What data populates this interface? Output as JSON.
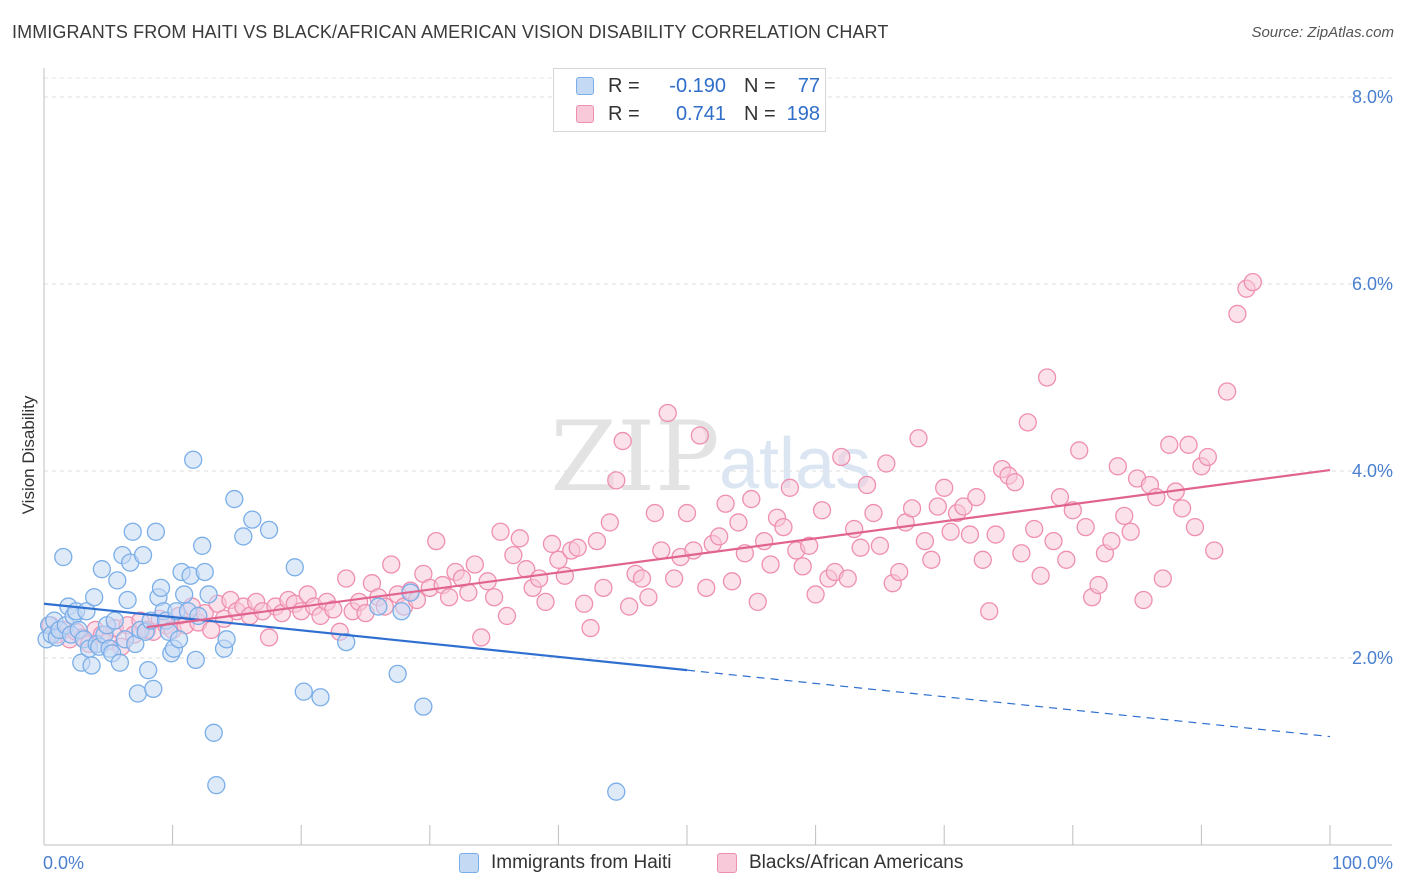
{
  "title": "IMMIGRANTS FROM HAITI VS BLACK/AFRICAN AMERICAN VISION DISABILITY CORRELATION CHART",
  "source": "Source: ZipAtlas.com",
  "watermark": {
    "zip": "ZIP",
    "atlas": "atlas"
  },
  "legend": {
    "rows": [
      {
        "r_label": "R =",
        "r_value": "-0.190",
        "n_label": "N =",
        "n_value": "77",
        "color": "#7aaee8",
        "fill": "#c4d9f4"
      },
      {
        "r_label": "R =",
        "r_value": "0.741",
        "n_label": "N =",
        "n_value": "198",
        "color": "#ef8fb0",
        "fill": "#f8c9d8"
      }
    ]
  },
  "bottom_legend": [
    {
      "label": "Immigrants from Haiti",
      "color": "#7aaee8",
      "fill": "#c4d9f4"
    },
    {
      "label": "Blacks/African Americans",
      "color": "#ef8fb0",
      "fill": "#f8c9d8"
    }
  ],
  "chart_data": {
    "type": "scatter",
    "title": "IMMIGRANTS FROM HAITI VS BLACK/AFRICAN AMERICAN VISION DISABILITY CORRELATION CHART",
    "xlabel": "",
    "ylabel": "Vision Disability",
    "x_unit": "%",
    "y_unit": "%",
    "xlim": [
      0,
      100
    ],
    "ylim": [
      0,
      8.4
    ],
    "x_tick_labels": [
      "0.0%",
      "100.0%"
    ],
    "y_ticks": [
      2.0,
      4.0,
      6.0,
      8.0
    ],
    "y_tick_labels": [
      "2.0%",
      "4.0%",
      "6.0%",
      "8.0%"
    ],
    "grid": "horizontal dashed",
    "legend_position": "top-center",
    "series": [
      {
        "name": "Immigrants from Haiti",
        "color": "#7aaee8",
        "fill": "#c4d9f4",
        "trend": {
          "x": [
            0,
            50
          ],
          "y": [
            2.58,
            1.87
          ],
          "dashed_extension": {
            "x": [
              50,
              100
            ],
            "y": [
              1.87,
              1.16
            ]
          },
          "line_color": "#2f6fd0"
        },
        "points": [
          [
            0.2,
            2.2
          ],
          [
            0.4,
            2.35
          ],
          [
            0.6,
            2.25
          ],
          [
            0.8,
            2.4
          ],
          [
            1,
            2.22
          ],
          [
            1.2,
            2.3
          ],
          [
            1.5,
            3.08
          ],
          [
            1.7,
            2.35
          ],
          [
            1.9,
            2.55
          ],
          [
            2.1,
            2.25
          ],
          [
            2.3,
            2.45
          ],
          [
            2.5,
            2.5
          ],
          [
            2.7,
            2.3
          ],
          [
            2.9,
            1.95
          ],
          [
            3.1,
            2.2
          ],
          [
            3.3,
            2.5
          ],
          [
            3.5,
            2.1
          ],
          [
            3.7,
            1.92
          ],
          [
            3.9,
            2.65
          ],
          [
            4.1,
            2.15
          ],
          [
            4.3,
            2.12
          ],
          [
            4.5,
            2.95
          ],
          [
            4.7,
            2.25
          ],
          [
            4.9,
            2.35
          ],
          [
            5.1,
            2.1
          ],
          [
            5.3,
            2.05
          ],
          [
            5.5,
            2.4
          ],
          [
            5.7,
            2.83
          ],
          [
            5.9,
            1.95
          ],
          [
            6.1,
            3.1
          ],
          [
            6.3,
            2.2
          ],
          [
            6.5,
            2.62
          ],
          [
            6.7,
            3.02
          ],
          [
            6.9,
            3.35
          ],
          [
            7.1,
            2.15
          ],
          [
            7.3,
            1.62
          ],
          [
            7.5,
            2.3
          ],
          [
            7.7,
            3.1
          ],
          [
            7.9,
            2.28
          ],
          [
            8.1,
            1.87
          ],
          [
            8.3,
            2.4
          ],
          [
            8.5,
            1.67
          ],
          [
            8.7,
            3.35
          ],
          [
            8.9,
            2.65
          ],
          [
            9.1,
            2.75
          ],
          [
            9.3,
            2.5
          ],
          [
            9.5,
            2.4
          ],
          [
            9.7,
            2.28
          ],
          [
            9.9,
            2.05
          ],
          [
            10.1,
            2.1
          ],
          [
            10.3,
            2.5
          ],
          [
            10.5,
            2.2
          ],
          [
            10.7,
            2.92
          ],
          [
            10.9,
            2.68
          ],
          [
            11.2,
            2.5
          ],
          [
            11.4,
            2.88
          ],
          [
            11.6,
            4.12
          ],
          [
            11.8,
            1.98
          ],
          [
            12,
            2.45
          ],
          [
            12.3,
            3.2
          ],
          [
            12.5,
            2.92
          ],
          [
            12.8,
            2.68
          ],
          [
            13.2,
            1.2
          ],
          [
            13.4,
            0.64
          ],
          [
            14,
            2.1
          ],
          [
            14.2,
            2.2
          ],
          [
            14.8,
            3.7
          ],
          [
            15.5,
            3.3
          ],
          [
            16.2,
            3.48
          ],
          [
            17.5,
            3.37
          ],
          [
            19.5,
            2.97
          ],
          [
            20.2,
            1.64
          ],
          [
            21.5,
            1.58
          ],
          [
            23.5,
            2.17
          ],
          [
            26,
            2.55
          ],
          [
            27.8,
            2.5
          ],
          [
            27.5,
            1.83
          ],
          [
            28.5,
            2.7
          ],
          [
            29.5,
            1.48
          ],
          [
            44.5,
            0.57
          ]
        ]
      },
      {
        "name": "Blacks/African Americans",
        "color": "#ef8fb0",
        "fill": "#f8c9d8",
        "trend": {
          "x": [
            8,
            100
          ],
          "y": [
            2.33,
            4.01
          ],
          "line_color": "#e0648f"
        },
        "points": [
          [
            0.5,
            2.35
          ],
          [
            1,
            2.25
          ],
          [
            1.5,
            2.3
          ],
          [
            2,
            2.2
          ],
          [
            2.5,
            2.28
          ],
          [
            3,
            2.22
          ],
          [
            3.5,
            2.15
          ],
          [
            4,
            2.3
          ],
          [
            4.5,
            2.25
          ],
          [
            5,
            2.18
          ],
          [
            5.5,
            2.32
          ],
          [
            6,
            2.12
          ],
          [
            6.5,
            2.35
          ],
          [
            7,
            2.25
          ],
          [
            7.5,
            2.4
          ],
          [
            8,
            2.3
          ],
          [
            8.5,
            2.28
          ],
          [
            9,
            2.42
          ],
          [
            9.5,
            2.35
          ],
          [
            10,
            2.3
          ],
          [
            10.5,
            2.45
          ],
          [
            11,
            2.35
          ],
          [
            11.5,
            2.55
          ],
          [
            12,
            2.38
          ],
          [
            12.5,
            2.48
          ],
          [
            13,
            2.3
          ],
          [
            13.5,
            2.58
          ],
          [
            14,
            2.42
          ],
          [
            14.5,
            2.62
          ],
          [
            15,
            2.5
          ],
          [
            15.5,
            2.55
          ],
          [
            16,
            2.45
          ],
          [
            16.5,
            2.6
          ],
          [
            17,
            2.5
          ],
          [
            17.5,
            2.22
          ],
          [
            18,
            2.55
          ],
          [
            18.5,
            2.48
          ],
          [
            19,
            2.62
          ],
          [
            19.5,
            2.58
          ],
          [
            20,
            2.5
          ],
          [
            20.5,
            2.68
          ],
          [
            21,
            2.55
          ],
          [
            21.5,
            2.45
          ],
          [
            22,
            2.6
          ],
          [
            22.5,
            2.52
          ],
          [
            23,
            2.28
          ],
          [
            23.5,
            2.85
          ],
          [
            24,
            2.5
          ],
          [
            24.5,
            2.6
          ],
          [
            25,
            2.48
          ],
          [
            25.5,
            2.8
          ],
          [
            26,
            2.65
          ],
          [
            26.5,
            2.55
          ],
          [
            27,
            3.0
          ],
          [
            27.5,
            2.68
          ],
          [
            28,
            2.55
          ],
          [
            28.5,
            2.72
          ],
          [
            29,
            2.62
          ],
          [
            29.5,
            2.9
          ],
          [
            30,
            2.75
          ],
          [
            30.5,
            3.25
          ],
          [
            31,
            2.78
          ],
          [
            31.5,
            2.65
          ],
          [
            32,
            2.92
          ],
          [
            32.5,
            2.85
          ],
          [
            33,
            2.7
          ],
          [
            33.5,
            3.0
          ],
          [
            34,
            2.22
          ],
          [
            34.5,
            2.82
          ],
          [
            35,
            2.65
          ],
          [
            35.5,
            3.35
          ],
          [
            36,
            2.45
          ],
          [
            36.5,
            3.1
          ],
          [
            37,
            3.28
          ],
          [
            37.5,
            2.95
          ],
          [
            38,
            2.75
          ],
          [
            38.5,
            2.85
          ],
          [
            39,
            2.6
          ],
          [
            39.5,
            3.22
          ],
          [
            40,
            3.05
          ],
          [
            40.5,
            2.88
          ],
          [
            41,
            3.15
          ],
          [
            41.5,
            3.18
          ],
          [
            42,
            2.58
          ],
          [
            42.5,
            2.32
          ],
          [
            43,
            3.25
          ],
          [
            43.5,
            2.75
          ],
          [
            44,
            3.45
          ],
          [
            44.5,
            3.9
          ],
          [
            45,
            4.32
          ],
          [
            45.5,
            2.55
          ],
          [
            46,
            2.9
          ],
          [
            46.5,
            2.85
          ],
          [
            47,
            2.65
          ],
          [
            47.5,
            3.55
          ],
          [
            48,
            3.15
          ],
          [
            48.5,
            4.62
          ],
          [
            49,
            2.85
          ],
          [
            49.5,
            3.08
          ],
          [
            50,
            3.55
          ],
          [
            50.5,
            3.15
          ],
          [
            51,
            4.38
          ],
          [
            51.5,
            2.75
          ],
          [
            52,
            3.22
          ],
          [
            52.5,
            3.3
          ],
          [
            53,
            3.65
          ],
          [
            53.5,
            2.82
          ],
          [
            54,
            3.45
          ],
          [
            54.5,
            3.12
          ],
          [
            55,
            3.7
          ],
          [
            55.5,
            2.6
          ],
          [
            56,
            3.25
          ],
          [
            56.5,
            3.0
          ],
          [
            57,
            3.5
          ],
          [
            57.5,
            3.4
          ],
          [
            58,
            3.82
          ],
          [
            58.5,
            3.15
          ],
          [
            59,
            2.98
          ],
          [
            59.5,
            3.2
          ],
          [
            60,
            2.68
          ],
          [
            60.5,
            3.58
          ],
          [
            61,
            2.85
          ],
          [
            61.5,
            2.92
          ],
          [
            62,
            4.15
          ],
          [
            62.5,
            2.85
          ],
          [
            63,
            3.38
          ],
          [
            63.5,
            3.18
          ],
          [
            64,
            3.85
          ],
          [
            64.5,
            3.55
          ],
          [
            65,
            3.2
          ],
          [
            65.5,
            4.08
          ],
          [
            66,
            2.8
          ],
          [
            66.5,
            2.92
          ],
          [
            67,
            3.45
          ],
          [
            67.5,
            3.6
          ],
          [
            68,
            4.35
          ],
          [
            68.5,
            3.25
          ],
          [
            69,
            3.05
          ],
          [
            69.5,
            3.62
          ],
          [
            70,
            3.82
          ],
          [
            70.5,
            3.35
          ],
          [
            71,
            3.55
          ],
          [
            71.5,
            3.62
          ],
          [
            72,
            3.32
          ],
          [
            72.5,
            3.72
          ],
          [
            73,
            3.05
          ],
          [
            73.5,
            2.5
          ],
          [
            74,
            3.32
          ],
          [
            74.5,
            4.02
          ],
          [
            75,
            3.95
          ],
          [
            75.5,
            3.88
          ],
          [
            76,
            3.12
          ],
          [
            76.5,
            4.52
          ],
          [
            77,
            3.38
          ],
          [
            77.5,
            2.88
          ],
          [
            78,
            5.0
          ],
          [
            78.5,
            3.25
          ],
          [
            79,
            3.72
          ],
          [
            79.5,
            3.05
          ],
          [
            80,
            3.58
          ],
          [
            80.5,
            4.22
          ],
          [
            81,
            3.4
          ],
          [
            81.5,
            2.65
          ],
          [
            82,
            2.78
          ],
          [
            82.5,
            3.12
          ],
          [
            83,
            3.25
          ],
          [
            83.5,
            4.05
          ],
          [
            84,
            3.52
          ],
          [
            84.5,
            3.35
          ],
          [
            85,
            3.92
          ],
          [
            85.5,
            2.62
          ],
          [
            86,
            3.85
          ],
          [
            86.5,
            3.72
          ],
          [
            87,
            2.85
          ],
          [
            87.5,
            4.28
          ],
          [
            88,
            3.78
          ],
          [
            88.5,
            3.6
          ],
          [
            89,
            4.28
          ],
          [
            89.5,
            3.4
          ],
          [
            90,
            4.05
          ],
          [
            90.5,
            4.15
          ],
          [
            91,
            3.15
          ],
          [
            92,
            4.85
          ],
          [
            92.8,
            5.68
          ],
          [
            93.5,
            5.95
          ],
          [
            94,
            6.02
          ]
        ]
      }
    ]
  }
}
